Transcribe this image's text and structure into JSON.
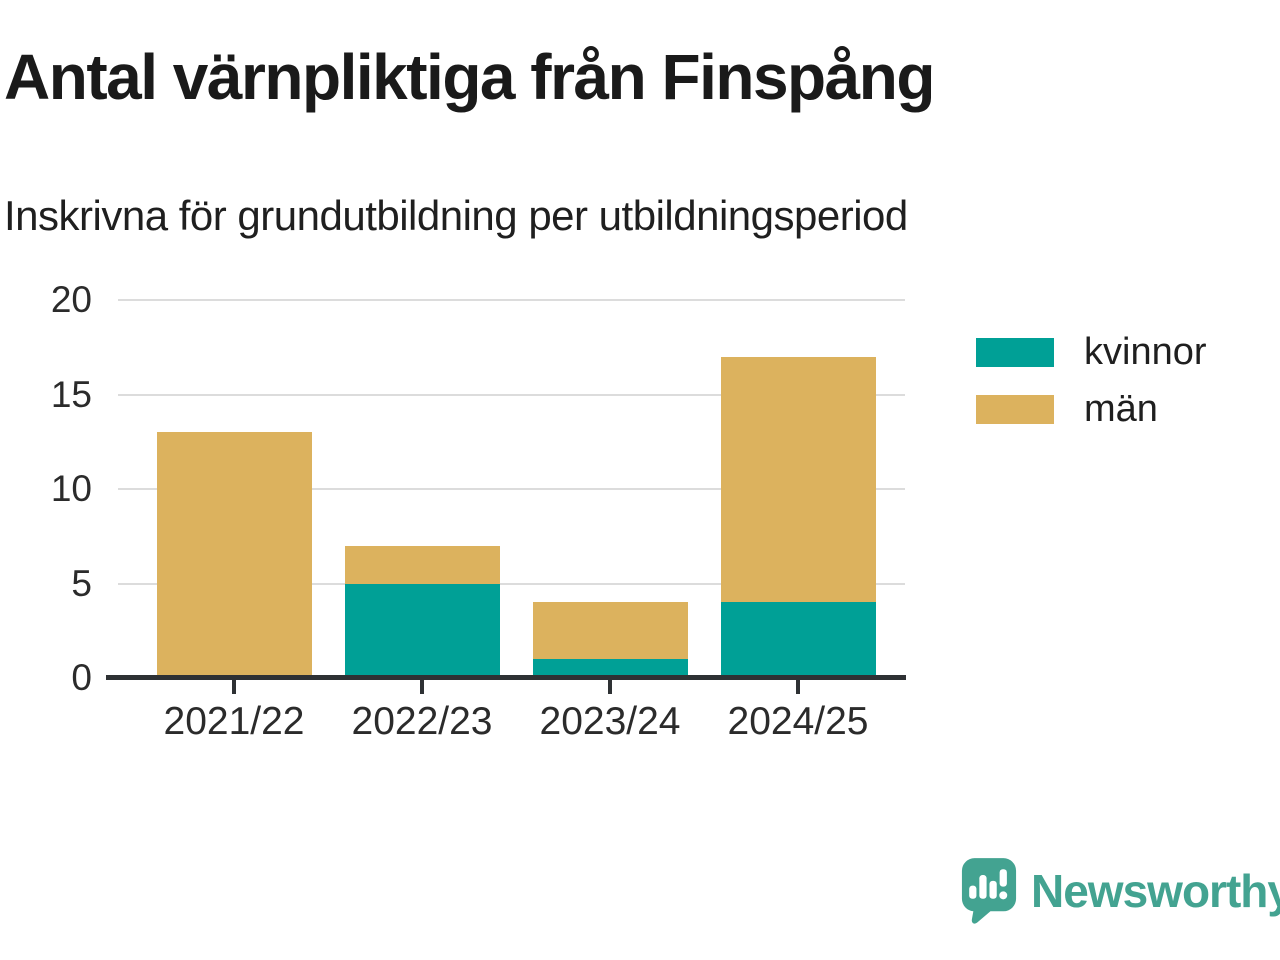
{
  "header": {
    "title": "Antal värnpliktiga från Finspång",
    "subtitle": "Inskrivna för grundutbildning per utbildningsperiod"
  },
  "chart_data": {
    "type": "bar",
    "stacked": true,
    "categories": [
      "2021/22",
      "2022/23",
      "2023/24",
      "2024/25"
    ],
    "series": [
      {
        "name": "kvinnor",
        "color": "#00a096",
        "values": [
          0,
          5,
          1,
          4
        ]
      },
      {
        "name": "män",
        "color": "#dcb25e",
        "values": [
          13,
          2,
          3,
          13
        ]
      }
    ],
    "totals": [
      13,
      7,
      4,
      17
    ],
    "title": "Antal värnpliktiga från Finspång",
    "subtitle": "Inskrivna för grundutbildning per utbildningsperiod",
    "xlabel": "",
    "ylabel": "",
    "ylim": [
      0,
      20
    ],
    "yticks": [
      0,
      5,
      10,
      15,
      20
    ],
    "grid": true,
    "legend_position": "right"
  },
  "legend": {
    "items": [
      {
        "label": "kvinnor",
        "color": "#00a096"
      },
      {
        "label": "män",
        "color": "#dcb25e"
      }
    ]
  },
  "branding": {
    "logo_text": "Newsworthy",
    "logo_color": "#43a391"
  },
  "colors": {
    "background": "#ffffff",
    "title_text": "#1a1a1a",
    "axis_text": "#2b2b2b",
    "gridline": "#dcdcdc",
    "axis_line": "#2e3134",
    "kvinnor": "#00a096",
    "man": "#dcb25e",
    "brand": "#43a391"
  }
}
